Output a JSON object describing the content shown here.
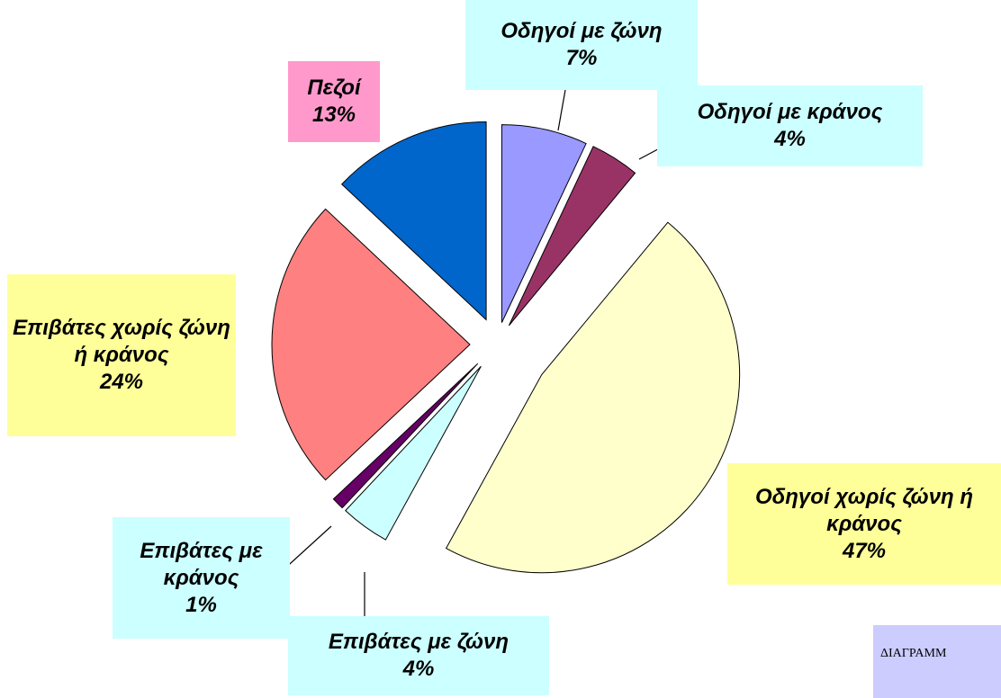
{
  "chart_data": {
    "type": "pie",
    "categories": [
      "Οδηγοί με ζώνη",
      "Οδηγοί με κράνος",
      "Οδηγοί χωρίς ζώνη ή κράνος",
      "Επιβάτες με ζώνη",
      "Επιβάτες με κράνος",
      "Επιβάτες χωρίς ζώνη ή κράνος",
      "Πεζοί"
    ],
    "values": [
      7,
      4,
      47,
      4,
      1,
      24,
      13
    ],
    "value_labels": [
      "7%",
      "4%",
      "47%",
      "4%",
      "1%",
      "24%",
      "13%"
    ],
    "colors": [
      "#9999ff",
      "#993366",
      "#ffffcc",
      "#ccffff",
      "#660066",
      "#ff8080",
      "#0066cc"
    ],
    "label_colors": [
      "#ccffff",
      "#ccffff",
      "#ffff99",
      "#ccffff",
      "#ccffff",
      "#ffff99",
      "#ff99cc"
    ],
    "annotation": "ΔΙΑΓΡΑΜΜ"
  }
}
